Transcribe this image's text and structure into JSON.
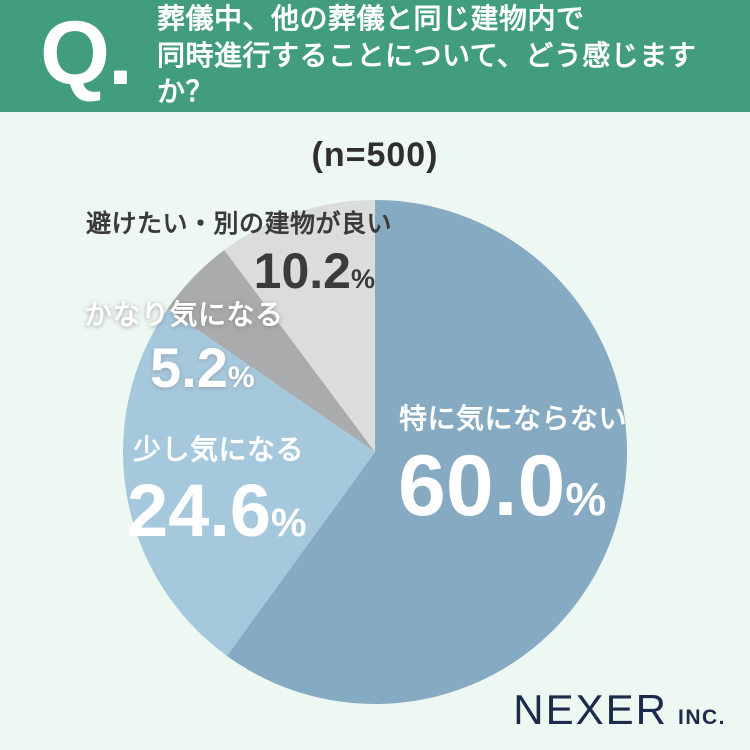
{
  "header": {
    "q_label": "Q.",
    "question_line1": "葬儀中、他の葬儀と同じ建物内で",
    "question_line2": "同時進行することについて、どう感じますか？"
  },
  "chart_data": {
    "type": "pie",
    "title": "(n=500)",
    "sample_size": 500,
    "unit": "%",
    "percent_symbol": "%",
    "start_angle_deg": 0,
    "direction": "clockwise",
    "legend": "none",
    "slices": [
      {
        "label": "特に気にならない",
        "value": 60.0,
        "display": "60.0",
        "color": "#85aac1",
        "label_color": "#ffffff"
      },
      {
        "label": "少し気になる",
        "value": 24.6,
        "display": "24.6",
        "color": "#a6c8dd",
        "label_color": "#ffffff"
      },
      {
        "label": "かなり気になる",
        "value": 5.2,
        "display": "5.2",
        "color": "#a9abad",
        "label_color": "#ffffff"
      },
      {
        "label": "避けたい・別の建物が良い",
        "value": 10.2,
        "display": "10.2",
        "color": "#dbdcde",
        "label_color": "#3b3b3b"
      }
    ]
  },
  "footer": {
    "brand": "NEXER",
    "brand_suffix": "INC."
  },
  "colors": {
    "background": "#ecf8f1",
    "header_bg": "#419d7e",
    "header_text": "#ffffff",
    "sample_text": "#2f2f2f",
    "brand_text": "#1c2b49"
  }
}
